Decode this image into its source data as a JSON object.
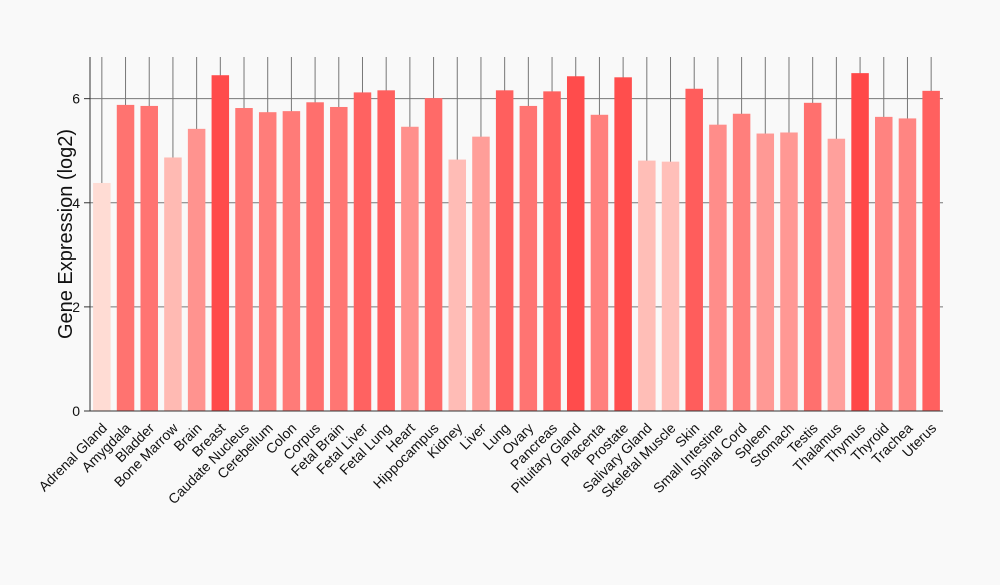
{
  "chart_data": {
    "type": "bar",
    "title": "",
    "xlabel": "",
    "ylabel": "Gene Expression (log2)",
    "ylim": [
      0,
      6.8
    ],
    "yticks": [
      0,
      2,
      4,
      6
    ],
    "grid": "vertical and horizontal",
    "categories": [
      "Adrenal Gland",
      "Amygdala",
      "Bladder",
      "Bone Marrow",
      "Brain",
      "Breast",
      "Caudate Nucleus",
      "Cerebellum",
      "Colon",
      "Corpus",
      "Fetal Brain",
      "Fetal Liver",
      "Fetal Lung",
      "Heart",
      "Hippocampus",
      "Kidney",
      "Liver",
      "Lung",
      "Ovary",
      "Pancreas",
      "Pituitary Gland",
      "Placenta",
      "Prostate",
      "Salivary Gland",
      "Skeletal Muscle",
      "Skin",
      "Small Intestine",
      "Spinal Cord",
      "Spleen",
      "Stomach",
      "Testis",
      "Thalamus",
      "Thymus",
      "Thyroid",
      "Trachea",
      "Uterus"
    ],
    "values": [
      4.38,
      5.88,
      5.86,
      4.87,
      5.42,
      6.45,
      5.82,
      5.74,
      5.76,
      5.93,
      5.84,
      6.12,
      6.16,
      5.46,
      6.01,
      4.83,
      5.27,
      6.16,
      5.86,
      6.14,
      6.43,
      5.69,
      6.41,
      4.81,
      4.79,
      6.19,
      5.5,
      5.71,
      5.33,
      5.35,
      5.92,
      5.23,
      6.49,
      5.65,
      5.62,
      6.15
    ],
    "color_scale": {
      "low": "#ffdcd4",
      "high": "#ff4848",
      "min_value": 4.38,
      "max_value": 6.49
    }
  }
}
